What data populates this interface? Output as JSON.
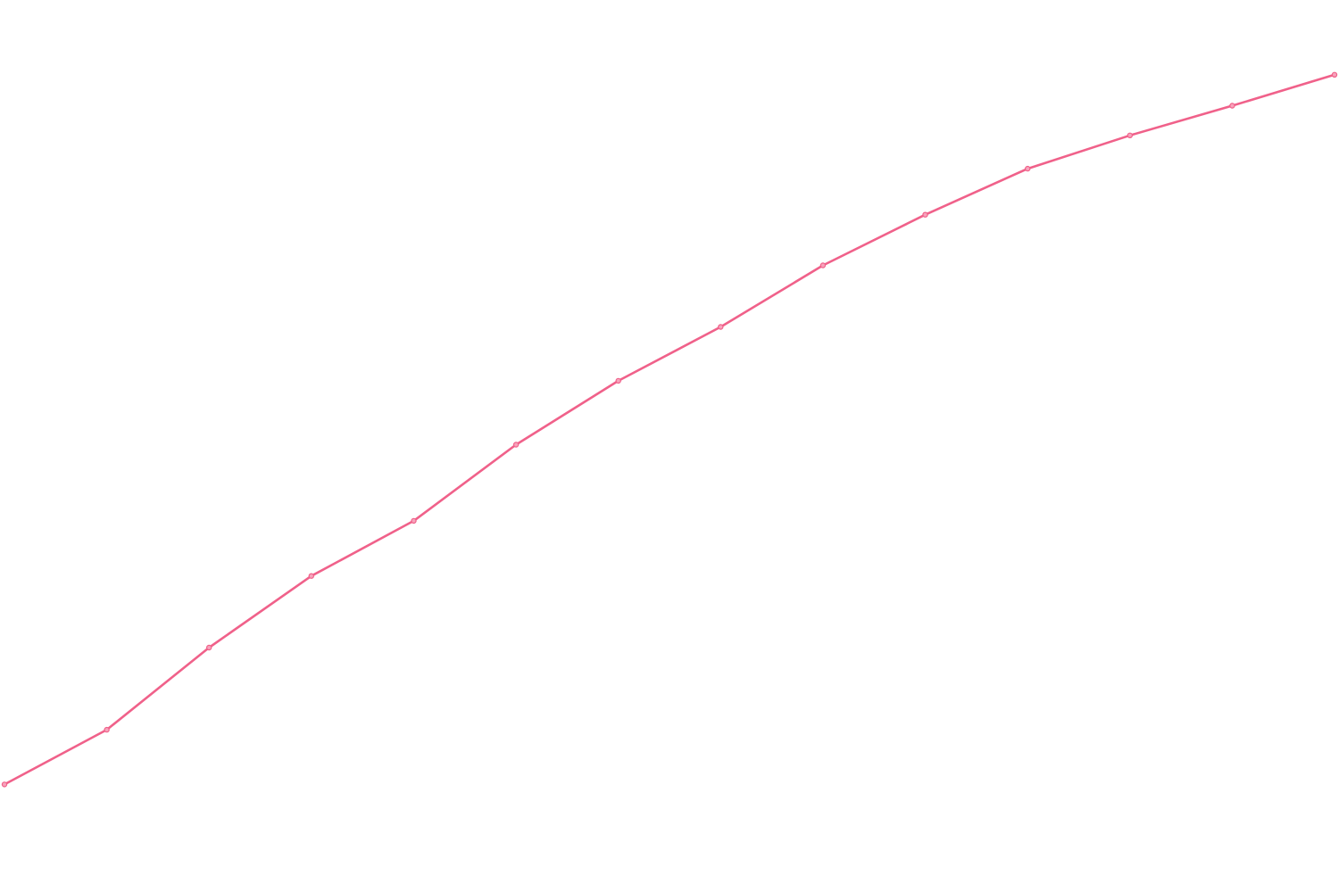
{
  "chart_data": {
    "type": "line",
    "x": [
      0,
      1,
      2,
      3,
      4,
      5,
      6,
      7,
      8,
      9,
      10,
      11,
      12,
      13
    ],
    "series": [
      {
        "color": "#f0618a",
        "values": [
          5.0,
          17.0,
          35.0,
          50.7,
          62.8,
          79.5,
          93.5,
          105.3,
          118.8,
          129.9,
          140.0,
          147.3,
          153.8,
          160.6
        ]
      }
    ],
    "xlim": [
      0,
      13
    ],
    "ylim": [
      0,
      176
    ],
    "grid": false,
    "axes_visible": false,
    "legend": "none"
  }
}
